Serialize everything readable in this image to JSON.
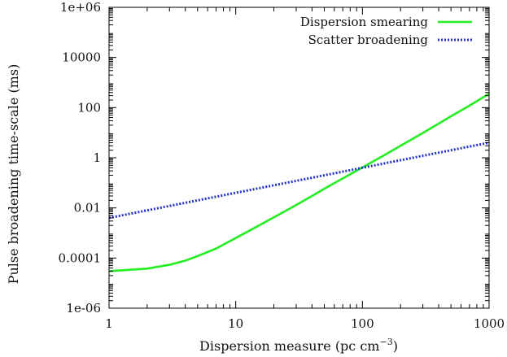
{
  "chart_data": {
    "type": "line",
    "title": "",
    "xlabel": "Dispersion measure (pc cm",
    "xlabel_superscript": "−3",
    "xlabel_suffix": ")",
    "ylabel": "Pulse broadening time-scale (ms)",
    "xscale": "log",
    "yscale": "log",
    "xlim": [
      1,
      1000
    ],
    "ylim": [
      1e-06,
      1000000.0
    ],
    "grid": false,
    "legend_position": "top-right",
    "x_ticks": [
      {
        "value": 1,
        "label": "1"
      },
      {
        "value": 10,
        "label": "10"
      },
      {
        "value": 100,
        "label": "100"
      },
      {
        "value": 1000,
        "label": "1000"
      }
    ],
    "y_ticks": [
      {
        "value": 1e-06,
        "label": "1e-06"
      },
      {
        "value": 0.0001,
        "label": "0.0001"
      },
      {
        "value": 0.01,
        "label": "0.01"
      },
      {
        "value": 1,
        "label": "1"
      },
      {
        "value": 100,
        "label": "100"
      },
      {
        "value": 10000,
        "label": "10000"
      },
      {
        "value": 1000000.0,
        "label": "1e+06"
      }
    ],
    "series": [
      {
        "name": "Dispersion smearing",
        "color": "#22ee22",
        "style": "solid",
        "x": [
          1,
          2,
          3,
          4,
          5,
          7,
          10,
          15,
          20,
          30,
          40,
          50,
          70,
          100,
          150,
          200,
          300,
          400,
          500,
          700,
          1000
        ],
        "y": [
          3e-05,
          3.8e-05,
          5.4e-05,
          7.9e-05,
          0.00012,
          0.00024,
          0.00063,
          0.0019,
          0.0042,
          0.013,
          0.03,
          0.058,
          0.15,
          0.41,
          1.3,
          3.0,
          9.8,
          23.0,
          45.0,
          120.0,
          360.0
        ]
      },
      {
        "name": "Scatter broadening",
        "color": "#2233cc",
        "style": "dotted",
        "x": [
          1,
          1000
        ],
        "y": [
          0.004,
          4.0
        ]
      }
    ]
  }
}
